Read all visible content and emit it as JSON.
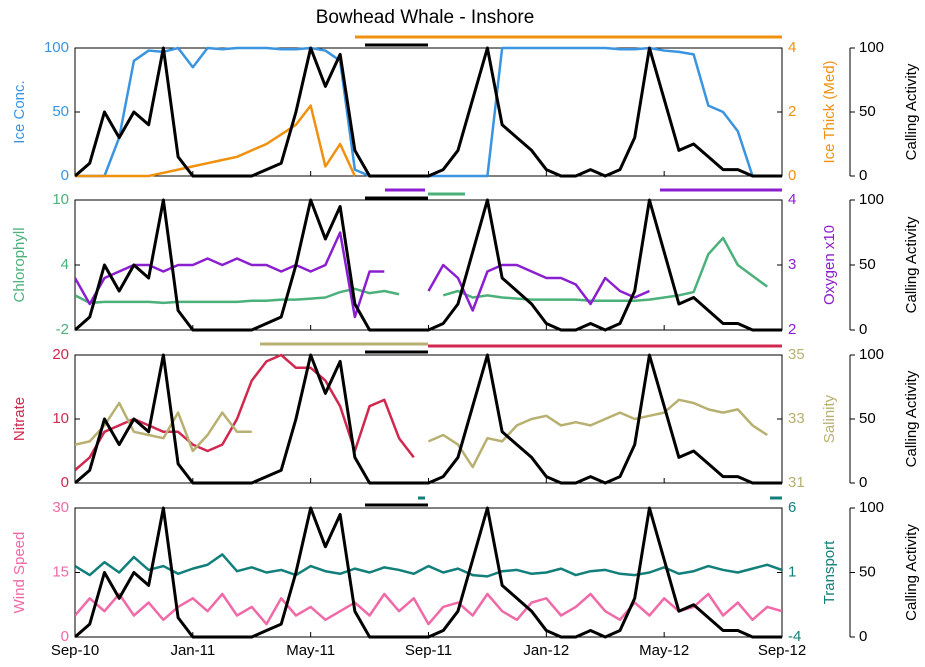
{
  "chart_data": {
    "type": "multi-panel",
    "title": "Bowhead Whale - Inshore",
    "x": [
      0,
      0.5,
      1,
      1.5,
      2,
      2.5,
      3,
      3.5,
      4,
      4.5,
      5,
      5.5,
      6,
      6.5,
      7,
      7.5,
      8,
      8.5,
      9,
      9.5,
      10,
      10.5,
      11,
      11.5,
      12,
      12.5,
      13,
      13.5,
      14,
      14.5,
      15,
      15.5,
      16,
      16.5,
      17,
      17.5,
      18,
      18.5,
      19,
      19.5,
      20,
      20.5,
      21,
      21.5,
      22,
      22.5,
      23,
      23.5,
      24
    ],
    "xlim": [
      0,
      24
    ],
    "xticks": [
      {
        "value": 0,
        "label": "Sep-10"
      },
      {
        "value": 4,
        "label": "Jan-11"
      },
      {
        "value": 8,
        "label": "May-11"
      },
      {
        "value": 12,
        "label": "Sep-11"
      },
      {
        "value": 16,
        "label": "Jan-12"
      },
      {
        "value": 20,
        "label": "May-12"
      },
      {
        "value": 24,
        "label": "Sep-12"
      }
    ],
    "panels": [
      {
        "type": "line",
        "ylabel": "Ice Conc.",
        "y2label": "Ice Thick (Med)",
        "y3label": "Calling Activity",
        "ylim": [
          0,
          100
        ],
        "yticks": [
          0,
          50,
          100
        ],
        "y2lim": [
          0,
          4
        ],
        "y2ticks": [
          0,
          2,
          4
        ],
        "y3lim": [
          0,
          100
        ],
        "y3ticks": [
          0,
          50,
          100
        ],
        "series": [
          {
            "name": "Ice Conc.",
            "color": "#3a94e0",
            "axis": "y",
            "values": [
              0,
              0,
              0,
              30,
              90,
              98,
              97,
              100,
              85,
              100,
              99,
              100,
              100,
              100,
              99,
              99,
              100,
              98,
              90,
              5,
              0,
              0,
              0,
              0,
              0,
              0,
              0,
              0,
              0,
              100,
              100,
              100,
              100,
              100,
              100,
              100,
              100,
              99,
              99,
              100,
              98,
              97,
              95,
              55,
              50,
              35,
              0,
              0,
              0
            ]
          },
          {
            "name": "Ice Thick (Med)",
            "color": "#f0900f",
            "axis": "y2",
            "values": [
              0,
              0,
              0,
              0,
              0,
              0,
              0.1,
              0.2,
              0.3,
              0.4,
              0.5,
              0.6,
              0.8,
              1.0,
              1.3,
              1.6,
              2.2,
              0.3,
              1.0,
              0,
              null,
              null,
              null,
              null,
              null,
              null,
              null,
              null,
              null,
              null,
              null,
              null,
              null,
              null,
              null,
              null,
              null,
              null,
              null,
              null,
              null,
              null,
              null,
              null,
              null,
              null,
              null,
              null,
              null
            ]
          },
          {
            "name": "Calling Activity",
            "color": "#000000",
            "axis": "y3",
            "values": [
              0,
              10,
              50,
              30,
              50,
              40,
              100,
              15,
              0,
              0,
              0,
              0,
              0,
              5,
              10,
              50,
              100,
              70,
              95,
              20,
              0,
              0,
              0,
              0,
              0,
              5,
              20,
              60,
              100,
              40,
              30,
              20,
              5,
              0,
              0,
              5,
              0,
              5,
              30,
              100,
              60,
              20,
              25,
              15,
              5,
              5,
              0,
              0,
              0
            ]
          }
        ]
      },
      {
        "type": "line",
        "ylabel": "Chlorophyll",
        "y2label": "Oxygen x10",
        "y3label": "Calling Activity",
        "ylim": [
          -2,
          10
        ],
        "yticks": [
          -2,
          4,
          10
        ],
        "y2lim": [
          2,
          4
        ],
        "y2ticks": [
          2,
          3,
          4
        ],
        "y3lim": [
          0,
          100
        ],
        "y3ticks": [
          0,
          50,
          100
        ],
        "series": [
          {
            "name": "Chlorophyll",
            "color": "#4cb07a",
            "axis": "y",
            "values": [
              1.2,
              0.5,
              0.6,
              0.6,
              0.6,
              0.6,
              0.5,
              0.6,
              0.6,
              0.6,
              0.6,
              0.6,
              0.7,
              0.7,
              0.8,
              0.8,
              0.9,
              1.0,
              1.5,
              1.8,
              1.4,
              1.6,
              1.3,
              null,
              null,
              1.2,
              1.6,
              1.0,
              1.2,
              1.0,
              0.9,
              0.8,
              0.8,
              0.8,
              0.8,
              0.7,
              0.7,
              0.7,
              0.7,
              0.8,
              1.0,
              1.2,
              1.5,
              5.0,
              6.5,
              4.0,
              3.0,
              2.0,
              null
            ]
          },
          {
            "name": "Oxygen x10",
            "color": "#8b1fcf",
            "axis": "y2",
            "values": [
              2.8,
              2.4,
              2.8,
              2.9,
              3.0,
              3.0,
              2.9,
              3.0,
              3.0,
              3.1,
              3.0,
              3.1,
              3.0,
              3.0,
              2.9,
              3.0,
              2.9,
              3.0,
              3.5,
              2.2,
              2.9,
              2.9,
              null,
              null,
              2.6,
              3.0,
              2.8,
              2.3,
              2.9,
              3.0,
              3.0,
              2.9,
              2.8,
              2.8,
              2.7,
              2.4,
              2.8,
              2.6,
              2.5,
              2.6,
              null,
              null,
              null,
              null,
              null,
              null,
              null,
              null,
              null
            ]
          },
          {
            "name": "Calling Activity",
            "color": "#000000",
            "axis": "y3",
            "values": [
              0,
              10,
              50,
              30,
              50,
              40,
              100,
              15,
              0,
              0,
              0,
              0,
              0,
              5,
              10,
              50,
              100,
              70,
              95,
              20,
              0,
              0,
              0,
              0,
              0,
              5,
              20,
              60,
              100,
              40,
              30,
              20,
              5,
              0,
              0,
              5,
              0,
              5,
              30,
              100,
              60,
              20,
              25,
              15,
              5,
              5,
              0,
              0,
              0
            ]
          }
        ]
      },
      {
        "type": "line",
        "ylabel": "Nitrate",
        "y2label": "Salinity",
        "y3label": "Calling Activity",
        "ylim": [
          0,
          20
        ],
        "yticks": [
          0,
          10,
          20
        ],
        "y2lim": [
          31,
          35
        ],
        "y2ticks": [
          31,
          33,
          35
        ],
        "y3lim": [
          0,
          100
        ],
        "y3ticks": [
          0,
          50,
          100
        ],
        "series": [
          {
            "name": "Nitrate",
            "color": "#d0284e",
            "axis": "y",
            "values": [
              2,
              4,
              8,
              9,
              10,
              9,
              8,
              8,
              6,
              5,
              6,
              10,
              16,
              19,
              20,
              18,
              18,
              16,
              12,
              5,
              12,
              13,
              7,
              4,
              null,
              null,
              null,
              null,
              null,
              null,
              null,
              null,
              null,
              null,
              null,
              null,
              null,
              null,
              null,
              null,
              null,
              null,
              null,
              null,
              null,
              null,
              null,
              null,
              null
            ]
          },
          {
            "name": "Salinity",
            "color": "#b8b070",
            "axis": "y2",
            "values": [
              32.2,
              32.3,
              32.8,
              33.5,
              32.6,
              32.5,
              32.4,
              33.2,
              32.0,
              32.5,
              33.2,
              32.6,
              32.6,
              null,
              null,
              null,
              null,
              null,
              null,
              null,
              null,
              null,
              null,
              null,
              32.3,
              32.5,
              32.2,
              31.5,
              32.4,
              32.3,
              32.8,
              33.0,
              33.1,
              32.8,
              32.9,
              32.8,
              33.0,
              33.2,
              33.0,
              33.1,
              33.2,
              33.6,
              33.5,
              33.3,
              33.2,
              33.3,
              32.8,
              32.5,
              null
            ]
          },
          {
            "name": "Calling Activity",
            "color": "#000000",
            "axis": "y3",
            "values": [
              0,
              10,
              50,
              30,
              50,
              40,
              100,
              15,
              0,
              0,
              0,
              0,
              0,
              5,
              10,
              50,
              100,
              70,
              95,
              20,
              0,
              0,
              0,
              0,
              0,
              5,
              20,
              60,
              100,
              40,
              30,
              20,
              5,
              0,
              0,
              5,
              0,
              5,
              30,
              100,
              60,
              20,
              25,
              15,
              5,
              5,
              0,
              0,
              0
            ]
          }
        ]
      },
      {
        "type": "line",
        "ylabel": "Wind Speed",
        "y2label": "Transport",
        "y3label": "Calling Activity",
        "ylim": [
          0,
          30
        ],
        "yticks": [
          0,
          15,
          30
        ],
        "y2lim": [
          -4,
          6
        ],
        "y2ticks": [
          -4,
          1,
          6
        ],
        "y3lim": [
          0,
          100
        ],
        "y3ticks": [
          0,
          50,
          100
        ],
        "series": [
          {
            "name": "Wind Speed",
            "color": "#f06aa8",
            "axis": "y",
            "values": [
              5,
              9,
              6,
              10,
              5,
              8,
              4,
              7,
              9,
              6,
              10,
              5,
              7,
              3,
              9,
              5,
              7,
              4,
              6,
              8,
              5,
              10,
              6,
              9,
              3,
              7,
              8,
              5,
              10,
              6,
              4,
              8,
              9,
              5,
              7,
              10,
              6,
              4,
              8,
              5,
              9,
              6,
              7,
              10,
              5,
              8,
              4,
              7,
              6
            ]
          },
          {
            "name": "Transport",
            "color": "#127f7a",
            "axis": "y2",
            "values": [
              1.5,
              0.8,
              1.8,
              1.0,
              2.2,
              1.2,
              1.5,
              0.9,
              1.3,
              1.6,
              2.4,
              1.1,
              1.4,
              1.0,
              1.2,
              0.8,
              1.5,
              1.1,
              0.9,
              1.3,
              1.0,
              1.4,
              1.2,
              0.9,
              1.5,
              1.0,
              1.3,
              0.8,
              0.7,
              1.1,
              1.2,
              0.9,
              1.0,
              1.3,
              0.8,
              1.1,
              1.2,
              0.9,
              0.8,
              1.0,
              1.4,
              0.9,
              1.1,
              1.5,
              1.2,
              1.0,
              1.3,
              1.6,
              1.2
            ]
          },
          {
            "name": "Calling Activity",
            "color": "#000000",
            "axis": "y3",
            "values": [
              0,
              10,
              50,
              30,
              50,
              40,
              100,
              15,
              0,
              0,
              0,
              0,
              0,
              5,
              10,
              50,
              100,
              70,
              95,
              20,
              0,
              0,
              0,
              0,
              0,
              5,
              20,
              60,
              100,
              40,
              30,
              20,
              5,
              0,
              0,
              5,
              0,
              5,
              30,
              100,
              60,
              20,
              25,
              15,
              5,
              5,
              0,
              0,
              0
            ]
          }
        ]
      }
    ]
  }
}
